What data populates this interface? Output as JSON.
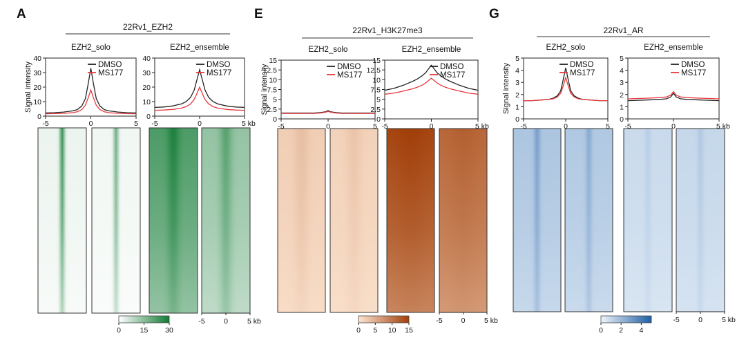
{
  "figure": {
    "axis_unit": "kb",
    "colors": {
      "dmso": "#222222",
      "ms177": "#e8383d"
    }
  },
  "chart_data": [
    {
      "panel_letter": "A",
      "type": "line",
      "header": "22Rv1_EZH2",
      "ylabel": "Signal intensity",
      "colormap": {
        "ticks": [
          "0",
          "15",
          "30"
        ],
        "range": [
          0,
          30
        ],
        "low": "#ffffff",
        "high": "#117a33"
      },
      "subplots": [
        {
          "title": "EZH2_solo",
          "ylim": [
            0,
            40
          ],
          "yticks": [
            0,
            10,
            20,
            30,
            40
          ],
          "xlim": [
            -5,
            5
          ],
          "xticks": [
            -5,
            0,
            5
          ],
          "series": [
            {
              "name": "DMSO",
              "x": [
                -5,
                -4,
                -3,
                -2,
                -1.5,
                -1,
                -0.6,
                -0.3,
                0,
                0.3,
                0.6,
                1,
                1.5,
                2,
                3,
                4,
                5
              ],
              "values": [
                2.2,
                2.4,
                2.8,
                3.6,
                4.5,
                7,
                12,
                22,
                33,
                22,
                12,
                7,
                4.5,
                3.6,
                2.8,
                2.4,
                2.2
              ]
            },
            {
              "name": "MS177",
              "x": [
                -5,
                -4,
                -3,
                -2,
                -1.5,
                -1,
                -0.6,
                -0.3,
                0,
                0.3,
                0.6,
                1,
                1.5,
                2,
                3,
                4,
                5
              ],
              "values": [
                1.6,
                1.7,
                1.9,
                2.4,
                3,
                4.5,
                7.5,
                12.5,
                18,
                12.5,
                7.5,
                4.5,
                3,
                2.4,
                1.9,
                1.7,
                1.6
              ]
            }
          ]
        },
        {
          "title": "EZH2_ensemble",
          "ylim": [
            0,
            40
          ],
          "yticks": [
            0,
            10,
            20,
            30,
            40
          ],
          "xlim": [
            -5,
            5
          ],
          "xticks": [
            -5,
            0,
            5
          ],
          "series": [
            {
              "name": "DMSO",
              "x": [
                -5,
                -4,
                -3,
                -2,
                -1.5,
                -1,
                -0.6,
                -0.3,
                0,
                0.3,
                0.6,
                1,
                1.5,
                2,
                3,
                4,
                5
              ],
              "values": [
                6,
                6.3,
                7,
                8.5,
                10,
                13,
                18,
                25,
                32,
                25,
                18,
                13,
                10,
                8.5,
                7,
                6.3,
                6
              ]
            },
            {
              "name": "MS177",
              "x": [
                -5,
                -4,
                -3,
                -2,
                -1.5,
                -1,
                -0.6,
                -0.3,
                0,
                0.3,
                0.6,
                1,
                1.5,
                2,
                3,
                4,
                5
              ],
              "values": [
                4,
                4.2,
                4.6,
                5.5,
                6.5,
                8.5,
                11.5,
                15.5,
                20,
                15.5,
                11.5,
                8.5,
                6.5,
                5.5,
                4.6,
                4.2,
                4
              ]
            }
          ]
        }
      ]
    },
    {
      "panel_letter": "E",
      "type": "line",
      "header": "22Rv1_H3K27me3",
      "ylabel": "Signal intensity",
      "colormap": {
        "ticks": [
          "0",
          "5",
          "10",
          "15"
        ],
        "range": [
          0,
          15
        ],
        "low": "#fde6d2",
        "high": "#a13e08"
      },
      "subplots": [
        {
          "title": "EZH2_solo",
          "ylim": [
            0,
            15
          ],
          "yticks": [
            0,
            2.5,
            5,
            7.5,
            10,
            12.5,
            15
          ],
          "xlim": [
            -5,
            5
          ],
          "xticks": [
            -5,
            0,
            5
          ],
          "series": [
            {
              "name": "DMSO",
              "x": [
                -5,
                -3,
                -1.5,
                -0.8,
                -0.3,
                0,
                0.3,
                0.8,
                1.5,
                3,
                5
              ],
              "values": [
                1.5,
                1.5,
                1.5,
                1.6,
                1.8,
                2.1,
                1.8,
                1.6,
                1.5,
                1.5,
                1.5
              ]
            },
            {
              "name": "MS177",
              "x": [
                -5,
                -3,
                -1.5,
                -0.8,
                -0.3,
                0,
                0.3,
                0.8,
                1.5,
                3,
                5
              ],
              "values": [
                1.4,
                1.4,
                1.4,
                1.5,
                1.7,
                1.9,
                1.7,
                1.5,
                1.4,
                1.4,
                1.4
              ]
            }
          ]
        },
        {
          "title": "EZH2_ensemble",
          "ylim": [
            0,
            15
          ],
          "yticks": [
            0,
            2.5,
            5,
            7.5,
            10,
            12.5,
            15
          ],
          "xlim": [
            -5,
            5
          ],
          "xticks": [
            -5,
            0,
            5
          ],
          "series": [
            {
              "name": "DMSO",
              "x": [
                -5,
                -4,
                -3,
                -2,
                -1.5,
                -1,
                -0.6,
                -0.3,
                0,
                0.3,
                0.6,
                1,
                1.5,
                2,
                3,
                4,
                5
              ],
              "values": [
                7.3,
                7.8,
                8.6,
                9.6,
                10.2,
                11,
                11.8,
                12.8,
                13.7,
                12.8,
                11.8,
                11,
                10.2,
                9.6,
                8.6,
                7.8,
                7.3
              ]
            },
            {
              "name": "MS177",
              "x": [
                -5,
                -4,
                -3,
                -2,
                -1.5,
                -1,
                -0.6,
                -0.3,
                0,
                0.3,
                0.6,
                1,
                1.5,
                2,
                3,
                4,
                5
              ],
              "values": [
                6.3,
                6.6,
                7.1,
                7.7,
                8.1,
                8.6,
                9.2,
                9.8,
                10.4,
                9.8,
                9.2,
                8.6,
                8.1,
                7.7,
                7.1,
                6.6,
                6.3
              ]
            }
          ]
        }
      ]
    },
    {
      "panel_letter": "G",
      "type": "line",
      "header": "22Rv1_AR",
      "ylabel": "Signal intensity",
      "colormap": {
        "ticks": [
          "0",
          "2",
          "4"
        ],
        "range": [
          0,
          5
        ],
        "low": "#eef5fc",
        "high": "#1f5ea4"
      },
      "subplots": [
        {
          "title": "EZH2_solo",
          "ylim": [
            0,
            5
          ],
          "yticks": [
            0,
            1,
            2,
            3,
            4,
            5
          ],
          "xlim": [
            -5,
            5
          ],
          "xticks": [
            -5,
            0,
            5
          ],
          "series": [
            {
              "name": "DMSO",
              "x": [
                -5,
                -4,
                -3,
                -2,
                -1.5,
                -1,
                -0.6,
                -0.3,
                0,
                0.3,
                0.6,
                1,
                1.5,
                2,
                3,
                4,
                5
              ],
              "values": [
                1.5,
                1.5,
                1.55,
                1.6,
                1.7,
                1.9,
                2.3,
                3.2,
                4.2,
                3.2,
                2.3,
                1.9,
                1.7,
                1.6,
                1.55,
                1.5,
                1.5
              ]
            },
            {
              "name": "MS177",
              "x": [
                -5,
                -4,
                -3,
                -2,
                -1.5,
                -1,
                -0.6,
                -0.3,
                0,
                0.3,
                0.6,
                1,
                1.5,
                2,
                3,
                4,
                5
              ],
              "values": [
                1.5,
                1.5,
                1.55,
                1.6,
                1.65,
                1.8,
                2.1,
                2.7,
                3.4,
                2.7,
                2.1,
                1.8,
                1.65,
                1.6,
                1.55,
                1.5,
                1.5
              ]
            }
          ]
        },
        {
          "title": "EZH2_ensemble",
          "ylim": [
            0,
            5
          ],
          "yticks": [
            0,
            1,
            2,
            3,
            4,
            5
          ],
          "xlim": [
            -5,
            5
          ],
          "xticks": [
            -5,
            0,
            5
          ],
          "series": [
            {
              "name": "DMSO",
              "x": [
                -5,
                -3,
                -1.5,
                -0.8,
                -0.3,
                0,
                0.3,
                0.8,
                1.5,
                3,
                5
              ],
              "values": [
                1.5,
                1.55,
                1.6,
                1.65,
                1.8,
                2.1,
                1.8,
                1.65,
                1.6,
                1.55,
                1.5
              ]
            },
            {
              "name": "MS177",
              "x": [
                -5,
                -3,
                -1.5,
                -0.8,
                -0.3,
                0,
                0.3,
                0.8,
                1.5,
                3,
                5
              ],
              "values": [
                1.65,
                1.7,
                1.75,
                1.8,
                1.95,
                2.25,
                1.95,
                1.8,
                1.75,
                1.7,
                1.65
              ]
            }
          ]
        }
      ]
    }
  ]
}
